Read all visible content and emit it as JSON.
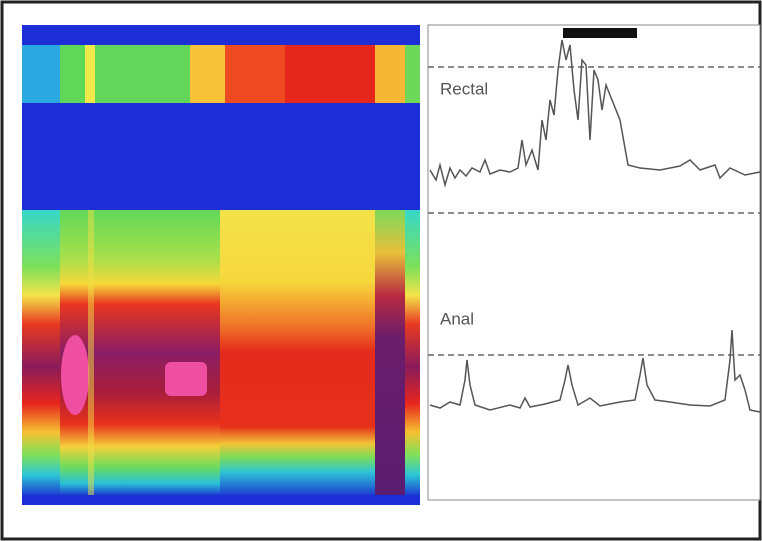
{
  "traces": [
    {
      "label": "Rectal"
    },
    {
      "label": "Anal"
    }
  ]
}
